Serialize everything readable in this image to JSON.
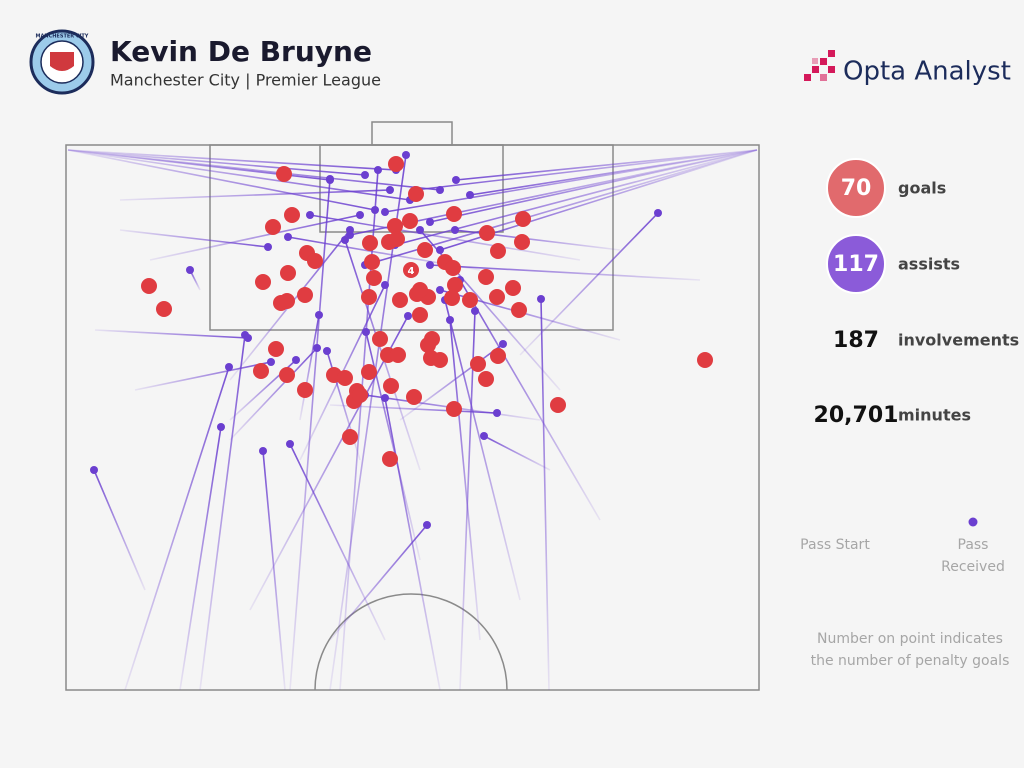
{
  "header": {
    "title": "Kevin De Bruyne",
    "subtitle": "Manchester City | Premier League",
    "brand": "Opta Analyst",
    "badge_text": "MANCHESTER CITY"
  },
  "chart_data": {
    "type": "scatter",
    "xlim": [
      0,
      693
    ],
    "ylim": [
      0,
      545
    ],
    "goals": {
      "name": "goals",
      "color": "#e03c41",
      "x": [
        330,
        218,
        350,
        226,
        207,
        329,
        344,
        388,
        457,
        421,
        323,
        456,
        241,
        359,
        432,
        249,
        306,
        379,
        222,
        308,
        420,
        197,
        389,
        83,
        351,
        239,
        215,
        221,
        362,
        303,
        386,
        431,
        447,
        98,
        354,
        453,
        314,
        366,
        210,
        322,
        332,
        362,
        432,
        365,
        412,
        195,
        221,
        268,
        279,
        303,
        420,
        239,
        325,
        291,
        288,
        348,
        388,
        492,
        284,
        324,
        639,
        354,
        304,
        331,
        387,
        294,
        334,
        404,
        374
      ],
      "y": [
        19,
        29,
        49,
        70,
        82,
        81,
        76,
        69,
        74,
        88,
        97,
        97,
        108,
        105,
        106,
        116,
        117,
        117,
        128,
        133,
        132,
        137,
        140,
        141,
        149,
        150,
        158,
        156,
        152,
        152,
        153,
        152,
        143,
        164,
        170,
        165,
        194,
        194,
        204,
        210,
        210,
        200,
        211,
        213,
        219,
        226,
        230,
        230,
        233,
        227,
        234,
        245,
        241,
        246,
        256,
        252,
        264,
        260,
        292,
        314,
        215,
        145,
        98,
        94,
        123,
        250,
        155,
        155,
        215
      ]
    },
    "penalty_goal": {
      "x": 345,
      "y": 125,
      "count": 4
    },
    "assists": {
      "name": "assists",
      "color": "#6b3fd0",
      "x_start": [
        2,
        2,
        2,
        2,
        2,
        2,
        691,
        691,
        691,
        691,
        691,
        691,
        691,
        691,
        691,
        454,
        264,
        79,
        134,
        319,
        219,
        114,
        59,
        134,
        484,
        264,
        483,
        334,
        394,
        264,
        224,
        274,
        164,
        234,
        69,
        29,
        374,
        474,
        164,
        354,
        184,
        454,
        534,
        414,
        554,
        354,
        494,
        54,
        84,
        54,
        514,
        414,
        634,
        554,
        234,
        294,
        164
      ],
      "y_start": [
        5,
        5,
        5,
        5,
        5,
        5,
        5,
        5,
        5,
        5,
        5,
        5,
        5,
        5,
        5,
        210,
        495,
        445,
        145,
        495,
        545,
        545,
        545,
        545,
        325,
        260,
        545,
        275,
        545,
        545,
        545,
        545,
        235,
        275,
        245,
        185,
        545,
        275,
        275,
        415,
        465,
        455,
        375,
        495,
        195,
        325,
        245,
        55,
        115,
        85,
        115,
        125,
        135,
        105,
        315,
        315,
        295
      ],
      "x": [
        330,
        299,
        344,
        309,
        374,
        264,
        349,
        390,
        319,
        364,
        404,
        284,
        329,
        374,
        299,
        592,
        361,
        28,
        124,
        224,
        197,
        155,
        163,
        179,
        418,
        431,
        475,
        437,
        409,
        340,
        264,
        312,
        284,
        253,
        205,
        182,
        319,
        299,
        230,
        300,
        342,
        379,
        394,
        384,
        374,
        279,
        354,
        324,
        294,
        202,
        244,
        222,
        364,
        389,
        319,
        261,
        251
      ],
      "y": [
        25,
        30,
        55,
        65,
        45,
        35,
        45,
        35,
        67,
        77,
        50,
        90,
        100,
        105,
        120,
        68,
        380,
        325,
        125,
        299,
        306,
        282,
        222,
        190,
        291,
        268,
        154,
        199,
        166,
        10,
        34,
        25,
        85,
        170,
        217,
        193,
        253,
        250,
        215,
        187,
        171,
        155,
        135,
        175,
        145,
        95,
        85,
        45,
        70,
        102,
        70,
        92,
        120,
        85,
        140,
        206,
        203
      ]
    }
  },
  "stats": [
    {
      "value": 70,
      "label": "goals",
      "color": "#e16a6d"
    },
    {
      "value": 117,
      "label": "assists",
      "color": "#8b5bd9"
    },
    {
      "value": 187,
      "label": "involvements"
    },
    {
      "value": 20701,
      "display": "20,701",
      "label": "minutes"
    }
  ],
  "legend": {
    "start": "Pass Start",
    "end": "Pass Received",
    "note": "Number on point indicates the number of penalty goals"
  }
}
